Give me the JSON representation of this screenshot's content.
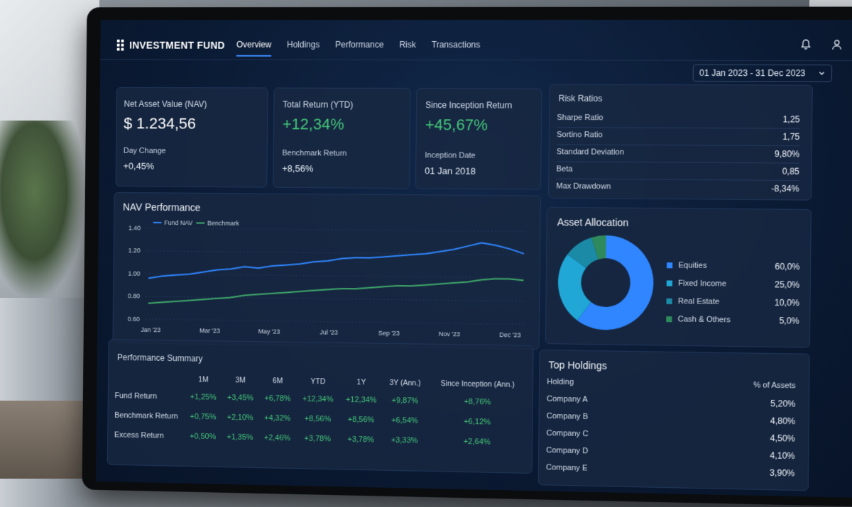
{
  "app": {
    "title": "INVESTMENT FUND"
  },
  "nav": {
    "tabs": [
      "Overview",
      "Holdings",
      "Performance",
      "Risk",
      "Transactions"
    ],
    "active": "Overview"
  },
  "icons": {
    "brand": "grid-icon",
    "notifications": "bell-icon",
    "user": "user-icon",
    "dropdown": "chevron-down-icon"
  },
  "date_range": "01 Jan 2023 - 31 Dec 2023",
  "nav_card": {
    "label": "Net Asset Value (NAV)",
    "value": "$ 1.234,56",
    "day_change_label": "Day Change",
    "day_change": "+0,45%"
  },
  "total_return": {
    "label": "Total Return (YTD)",
    "value": "+12,34%",
    "benchmark_label": "Benchmark Return",
    "benchmark": "+8,56%"
  },
  "inception": {
    "label": "Since Inception Return",
    "value": "+45,67%",
    "date_label": "Inception Date",
    "date": "01 Jan 2018"
  },
  "risk": {
    "title": "Risk Ratios",
    "rows": [
      {
        "label": "Sharpe Ratio",
        "value": "1,25"
      },
      {
        "label": "Sortino Ratio",
        "value": "1,75"
      },
      {
        "label": "Standard Deviation",
        "value": "9,80%"
      },
      {
        "label": "Beta",
        "value": "0,85"
      },
      {
        "label": "Max Drawdown",
        "value": "-8,34%"
      }
    ]
  },
  "colors": {
    "fund": "#2f86ff",
    "benchmark": "#3faa6a",
    "equities": "#2f86ff",
    "fixed_income": "#20a7d6",
    "real_estate": "#1b8aa6",
    "cash": "#2e8a5c",
    "positive": "#43c779"
  },
  "chart_data": [
    {
      "type": "line",
      "title": "NAV Performance",
      "x_ticks": [
        "Jan '23",
        "Mar '23",
        "May '23",
        "Jul '23",
        "Sep '23",
        "Nov '23",
        "Dec '23"
      ],
      "ylim": [
        0.6,
        1.4
      ],
      "y_ticks": [
        "1.40",
        "1.20",
        "1.00",
        "0.80",
        "0.60"
      ],
      "grid": true,
      "legend": "top-left",
      "series": [
        {
          "name": "Fund NAV",
          "values": [
            0.96,
            0.98,
            0.99,
            1.0,
            1.02,
            1.04,
            1.05,
            1.07,
            1.06,
            1.08,
            1.09,
            1.1,
            1.12,
            1.13,
            1.15,
            1.16,
            1.16,
            1.17,
            1.18,
            1.19,
            1.2,
            1.22,
            1.24,
            1.27,
            1.3,
            1.28,
            1.25,
            1.21
          ]
        },
        {
          "name": "Benchmark",
          "values": [
            0.74,
            0.75,
            0.76,
            0.77,
            0.78,
            0.79,
            0.8,
            0.82,
            0.83,
            0.84,
            0.85,
            0.86,
            0.87,
            0.88,
            0.89,
            0.89,
            0.9,
            0.91,
            0.92,
            0.92,
            0.93,
            0.94,
            0.95,
            0.96,
            0.98,
            0.99,
            0.99,
            0.98
          ]
        }
      ]
    },
    {
      "type": "pie",
      "title": "Asset Allocation",
      "categories": [
        "Equities",
        "Fixed Income",
        "Real Estate",
        "Cash & Others"
      ],
      "values": [
        60.0,
        25.0,
        10.0,
        5.0
      ],
      "labels": [
        "60,0%",
        "25,0%",
        "10,0%",
        "5,0%"
      ]
    },
    {
      "type": "table",
      "title": "Performance Summary",
      "columns": [
        "1M",
        "3M",
        "6M",
        "YTD",
        "1Y",
        "3Y (Ann.)",
        "Since Inception (Ann.)"
      ],
      "rows": [
        {
          "label": "Fund Return",
          "cells": [
            "+1,25%",
            "+3,45%",
            "+6,78%",
            "+12,34%",
            "+12,34%",
            "+9,87%",
            "+8,76%"
          ]
        },
        {
          "label": "Benchmark Return",
          "cells": [
            "+0,75%",
            "+2,10%",
            "+4,32%",
            "+8,56%",
            "+8,56%",
            "+6,54%",
            "+6,12%"
          ]
        },
        {
          "label": "Excess Return",
          "cells": [
            "+0,50%",
            "+1,35%",
            "+2,46%",
            "+3,78%",
            "+3,78%",
            "+3,33%",
            "+2,64%"
          ]
        }
      ]
    }
  ],
  "holdings": {
    "title": "Top Holdings",
    "col_holding": "Holding",
    "col_assets": "% of Assets",
    "rows": [
      {
        "name": "Company A",
        "value": "5,20%"
      },
      {
        "name": "Company B",
        "value": "4,80%"
      },
      {
        "name": "Company C",
        "value": "4,50%"
      },
      {
        "name": "Company D",
        "value": "4,10%"
      },
      {
        "name": "Company E",
        "value": "3,90%"
      }
    ]
  }
}
